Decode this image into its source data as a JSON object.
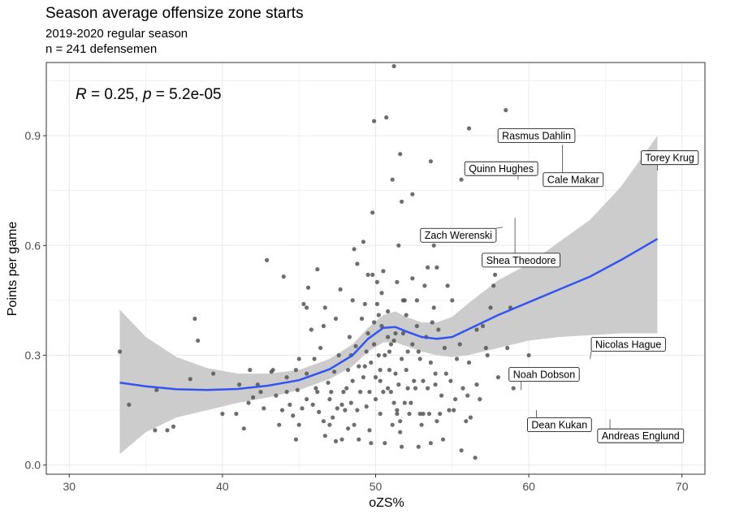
{
  "header": {
    "title": "Season average offensize zone starts",
    "subtitle_1": "2019-2020 regular season",
    "subtitle_2": "n = 241 defensemen"
  },
  "chart_data": {
    "type": "scatter",
    "xlabel": "oZS%",
    "ylabel": "Points per game",
    "xlim": [
      28.5,
      71.5
    ],
    "ylim": [
      -0.025,
      1.1
    ],
    "x_ticks": [
      30,
      40,
      50,
      60,
      70
    ],
    "y_ticks": [
      0.0,
      0.3,
      0.6,
      0.9
    ],
    "y_tick_labels": [
      "0.0",
      "0.3",
      "0.6",
      "0.9"
    ],
    "grid": true,
    "annotation": {
      "r_symbol": "R",
      "r_text": " = 0.25, ",
      "p_symbol": "p",
      "p_text": " = 5.2e-05"
    },
    "colors": {
      "points": "#555555",
      "smooth_line": "#3355ee",
      "ribbon": "#cccccc",
      "grid": "#ebebeb",
      "border": "#333333"
    },
    "smooth": {
      "x": [
        33.3,
        35,
        37,
        39,
        41,
        43,
        45,
        47,
        48.5,
        49.5,
        50.5,
        51.3,
        52,
        53,
        54,
        55,
        56,
        58,
        60,
        62,
        64,
        66,
        68.4
      ],
      "y": [
        0.225,
        0.215,
        0.207,
        0.205,
        0.208,
        0.217,
        0.232,
        0.262,
        0.3,
        0.345,
        0.375,
        0.377,
        0.365,
        0.35,
        0.345,
        0.35,
        0.37,
        0.41,
        0.445,
        0.48,
        0.515,
        0.56,
        0.618
      ],
      "lower": [
        0.03,
        0.09,
        0.13,
        0.15,
        0.17,
        0.185,
        0.205,
        0.235,
        0.27,
        0.31,
        0.335,
        0.335,
        0.325,
        0.31,
        0.3,
        0.295,
        0.3,
        0.32,
        0.34,
        0.35,
        0.355,
        0.36,
        0.36
      ],
      "upper": [
        0.425,
        0.35,
        0.295,
        0.265,
        0.25,
        0.25,
        0.26,
        0.29,
        0.33,
        0.375,
        0.41,
        0.42,
        0.405,
        0.39,
        0.39,
        0.405,
        0.44,
        0.505,
        0.55,
        0.61,
        0.67,
        0.76,
        0.9
      ]
    },
    "points": [
      [
        33.3,
        0.31
      ],
      [
        33.9,
        0.165
      ],
      [
        35.7,
        0.205
      ],
      [
        35.6,
        0.095
      ],
      [
        36.4,
        0.095
      ],
      [
        36.8,
        0.105
      ],
      [
        37.9,
        0.235
      ],
      [
        38.2,
        0.4
      ],
      [
        38.4,
        0.34
      ],
      [
        39.4,
        0.25
      ],
      [
        40.0,
        0.14
      ],
      [
        40.9,
        0.14
      ],
      [
        41.1,
        0.22
      ],
      [
        41.4,
        0.1
      ],
      [
        41.7,
        0.17
      ],
      [
        41.8,
        0.26
      ],
      [
        42.0,
        0.185
      ],
      [
        42.3,
        0.22
      ],
      [
        42.5,
        0.2
      ],
      [
        42.7,
        0.155
      ],
      [
        42.9,
        0.56
      ],
      [
        43.2,
        0.255
      ],
      [
        43.3,
        0.26
      ],
      [
        43.5,
        0.19
      ],
      [
        43.7,
        0.11
      ],
      [
        44.0,
        0.515
      ],
      [
        44.2,
        0.24
      ],
      [
        44.4,
        0.165
      ],
      [
        44.6,
        0.135
      ],
      [
        44.8,
        0.07
      ],
      [
        44.9,
        0.205
      ],
      [
        45.0,
        0.11
      ],
      [
        45.0,
        0.29
      ],
      [
        45.2,
        0.155
      ],
      [
        45.3,
        0.44
      ],
      [
        45.5,
        0.25
      ],
      [
        45.5,
        0.18
      ],
      [
        45.6,
        0.485
      ],
      [
        45.8,
        0.37
      ],
      [
        45.9,
        0.165
      ],
      [
        46.0,
        0.29
      ],
      [
        46.1,
        0.21
      ],
      [
        46.2,
        0.535
      ],
      [
        46.3,
        0.145
      ],
      [
        46.4,
        0.32
      ],
      [
        46.6,
        0.12
      ],
      [
        46.7,
        0.43
      ],
      [
        46.7,
        0.08
      ],
      [
        46.9,
        0.225
      ],
      [
        47.0,
        0.18
      ],
      [
        47.1,
        0.2
      ],
      [
        47.2,
        0.13
      ],
      [
        47.3,
        0.255
      ],
      [
        47.4,
        0.065
      ],
      [
        47.4,
        0.4
      ],
      [
        47.5,
        0.155
      ],
      [
        47.6,
        0.3
      ],
      [
        47.7,
        0.48
      ],
      [
        47.8,
        0.165
      ],
      [
        47.9,
        0.2
      ],
      [
        48.0,
        0.15
      ],
      [
        48.1,
        0.21
      ],
      [
        48.2,
        0.26
      ],
      [
        48.2,
        0.1
      ],
      [
        48.3,
        0.35
      ],
      [
        48.4,
        0.17
      ],
      [
        48.5,
        0.23
      ],
      [
        48.5,
        0.45
      ],
      [
        48.6,
        0.11
      ],
      [
        48.6,
        0.59
      ],
      [
        48.7,
        0.325
      ],
      [
        48.8,
        0.15
      ],
      [
        48.8,
        0.55
      ],
      [
        48.9,
        0.27
      ],
      [
        48.9,
        0.07
      ],
      [
        49.0,
        0.2
      ],
      [
        49.1,
        0.4
      ],
      [
        49.2,
        0.24
      ],
      [
        49.2,
        0.61
      ],
      [
        49.3,
        0.44
      ],
      [
        49.4,
        0.31
      ],
      [
        49.4,
        0.16
      ],
      [
        49.5,
        0.52
      ],
      [
        49.5,
        0.36
      ],
      [
        49.6,
        0.095
      ],
      [
        49.6,
        0.2
      ],
      [
        49.7,
        0.28
      ],
      [
        49.7,
        0.06
      ],
      [
        49.8,
        0.52
      ],
      [
        49.9,
        0.39
      ],
      [
        49.9,
        0.33
      ],
      [
        50.0,
        0.24
      ],
      [
        50.0,
        0.18
      ],
      [
        50.1,
        0.5
      ],
      [
        50.1,
        0.44
      ],
      [
        50.2,
        0.3
      ],
      [
        50.2,
        0.41
      ],
      [
        50.3,
        0.23
      ],
      [
        50.3,
        0.14
      ],
      [
        50.4,
        0.47
      ],
      [
        50.4,
        0.38
      ],
      [
        50.5,
        0.2
      ],
      [
        50.5,
        0.53
      ],
      [
        50.6,
        0.3
      ],
      [
        50.6,
        0.06
      ],
      [
        50.7,
        0.95
      ],
      [
        50.8,
        0.21
      ],
      [
        50.8,
        0.42
      ],
      [
        50.9,
        0.26
      ],
      [
        51.0,
        0.2
      ],
      [
        51.0,
        0.33
      ],
      [
        51.1,
        0.11
      ],
      [
        51.1,
        0.78
      ],
      [
        51.2,
        0.34
      ],
      [
        51.2,
        0.17
      ],
      [
        51.3,
        0.25
      ],
      [
        51.3,
        0.36
      ],
      [
        51.4,
        0.15
      ],
      [
        51.4,
        0.5
      ],
      [
        51.5,
        0.22
      ],
      [
        51.5,
        0.6
      ],
      [
        51.6,
        0.09
      ],
      [
        51.6,
        0.12
      ],
      [
        51.7,
        0.29
      ],
      [
        51.7,
        0.05
      ],
      [
        51.8,
        0.36
      ],
      [
        51.9,
        0.17
      ],
      [
        51.9,
        0.45
      ],
      [
        52.0,
        0.41
      ],
      [
        52.0,
        0.26
      ],
      [
        52.1,
        0.21
      ],
      [
        52.1,
        0.31
      ],
      [
        52.2,
        0.14
      ],
      [
        52.3,
        0.17
      ],
      [
        52.4,
        0.51
      ],
      [
        52.4,
        0.33
      ],
      [
        52.5,
        0.23
      ],
      [
        52.6,
        0.21
      ],
      [
        52.7,
        0.38
      ],
      [
        52.8,
        0.31
      ],
      [
        52.9,
        0.29
      ],
      [
        53.0,
        0.11
      ],
      [
        53.1,
        0.23
      ],
      [
        53.1,
        0.14
      ],
      [
        53.2,
        0.49
      ],
      [
        53.3,
        0.35
      ],
      [
        53.4,
        0.54
      ],
      [
        53.4,
        0.21
      ],
      [
        53.5,
        0.14
      ],
      [
        53.6,
        0.28
      ],
      [
        53.6,
        0.06
      ],
      [
        53.7,
        0.39
      ],
      [
        53.8,
        0.43
      ],
      [
        53.9,
        0.25
      ],
      [
        54.0,
        0.12
      ],
      [
        54.0,
        0.54
      ],
      [
        54.1,
        0.37
      ],
      [
        54.2,
        0.14
      ],
      [
        54.3,
        0.19
      ],
      [
        54.4,
        0.07
      ],
      [
        54.5,
        0.32
      ],
      [
        54.6,
        0.25
      ],
      [
        54.7,
        0.49
      ],
      [
        54.8,
        0.15
      ],
      [
        54.9,
        0.23
      ],
      [
        55.0,
        0.45
      ],
      [
        55.2,
        0.18
      ],
      [
        55.3,
        0.29
      ],
      [
        55.6,
        0.04
      ],
      [
        55.7,
        0.21
      ],
      [
        55.9,
        0.12
      ],
      [
        56.0,
        0.19
      ],
      [
        56.1,
        0.28
      ],
      [
        56.5,
        0.02
      ],
      [
        56.6,
        0.22
      ],
      [
        56.8,
        0.18
      ],
      [
        57.0,
        0.38
      ],
      [
        57.2,
        0.32
      ],
      [
        57.5,
        0.43
      ],
      [
        57.8,
        0.52
      ],
      [
        58.0,
        0.24
      ],
      [
        57.3,
        0.3
      ],
      [
        56.2,
        0.13
      ],
      [
        55.5,
        0.33
      ],
      [
        51.2,
        1.09
      ],
      [
        49.9,
        0.94
      ],
      [
        51.6,
        0.85
      ],
      [
        53.6,
        0.83
      ],
      [
        56.1,
        0.92
      ],
      [
        58.5,
        0.97
      ],
      [
        55.6,
        0.78
      ],
      [
        52.4,
        0.74
      ],
      [
        51.7,
        0.72
      ],
      [
        49.8,
        0.69
      ],
      [
        53.8,
        0.6
      ],
      [
        57.7,
        0.49
      ],
      [
        58.8,
        0.43
      ],
      [
        58.6,
        0.32
      ],
      [
        59.0,
        0.21
      ],
      [
        60.0,
        0.3
      ],
      [
        52.7,
        0.45
      ],
      [
        46.6,
        0.38
      ],
      [
        45.5,
        0.43
      ],
      [
        43.9,
        0.15
      ],
      [
        44.8,
        0.26
      ],
      [
        47.0,
        0.11
      ],
      [
        47.8,
        0.07
      ],
      [
        46.2,
        0.2
      ],
      [
        44.2,
        0.2
      ],
      [
        52.9,
        0.14
      ],
      [
        51.4,
        0.14
      ],
      [
        50.8,
        0.35
      ],
      [
        49.3,
        0.27
      ],
      [
        48.4,
        0.3
      ],
      [
        52.8,
        0.05
      ],
      [
        51.8,
        0.45
      ],
      [
        53.9,
        0.22
      ],
      [
        55.1,
        0.15
      ],
      [
        56.6,
        0.37
      ],
      [
        50.3,
        0.26
      ],
      [
        50.9,
        0.31
      ]
    ],
    "labeled_points": [
      {
        "name": "Rasmus Dahlin",
        "x": 62.2,
        "y": 0.875,
        "lx": 60.5,
        "ly": 0.9
      },
      {
        "name": "Quinn Hughes",
        "x": 59.3,
        "y": 0.78,
        "lx": 58.2,
        "ly": 0.81
      },
      {
        "name": "Cale Makar",
        "x": 62.2,
        "y": 0.875,
        "lx": 62.9,
        "ly": 0.78
      },
      {
        "name": "Torey Krug",
        "x": 68.4,
        "y": 0.805,
        "lx": 69.2,
        "ly": 0.84
      },
      {
        "name": "Zach Werenski",
        "x": 58.3,
        "y": 0.65,
        "lx": 55.4,
        "ly": 0.628
      },
      {
        "name": "Shea Theodore",
        "x": 59.1,
        "y": 0.675,
        "lx": 59.5,
        "ly": 0.56
      },
      {
        "name": "Nicolas Hague",
        "x": 64.0,
        "y": 0.29,
        "lx": 66.5,
        "ly": 0.33
      },
      {
        "name": "Noah Dobson",
        "x": 59.5,
        "y": 0.205,
        "lx": 61.0,
        "ly": 0.248
      },
      {
        "name": "Dean Kukan",
        "x": 60.5,
        "y": 0.15,
        "lx": 62.0,
        "ly": 0.11
      },
      {
        "name": "Andreas Englund",
        "x": 65.3,
        "y": 0.125,
        "lx": 67.3,
        "ly": 0.08
      }
    ]
  }
}
